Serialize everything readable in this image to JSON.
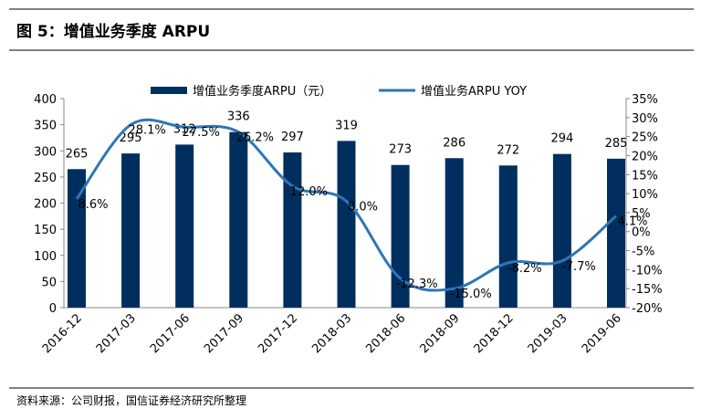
{
  "header": {
    "title": "图 5：增值业务季度 ARPU"
  },
  "chart_data": {
    "type": "bar_line",
    "categories": [
      "2016-12",
      "2017-03",
      "2017-06",
      "2017-09",
      "2017-12",
      "2018-03",
      "2018-06",
      "2018-09",
      "2018-12",
      "2019-03",
      "2019-06"
    ],
    "series": [
      {
        "name": "增值业务季度ARPU（元）",
        "type": "bar",
        "color": "#002f5f",
        "values": [
          265,
          295,
          312,
          336,
          297,
          319,
          273,
          286,
          272,
          294,
          285
        ]
      },
      {
        "name": "增值业务ARPU YOY",
        "type": "line",
        "axis": "y2",
        "color": "#2e75b6",
        "values": [
          8.6,
          28.1,
          27.5,
          26.2,
          12.0,
          8.0,
          -12.3,
          -15.0,
          -8.2,
          -7.7,
          4.1
        ],
        "value_labels": [
          "8.6%",
          "28.1%",
          "27.5%",
          "26.2%",
          "12.0%",
          "8.0%",
          "-12.3%",
          "-15.0%",
          "-8.2%",
          "-7.7%",
          "4.1%"
        ]
      }
    ],
    "ylim": [
      0,
      400
    ],
    "yticks": [
      0,
      50,
      100,
      150,
      200,
      250,
      300,
      350,
      400
    ],
    "y2lim": [
      -20,
      35
    ],
    "y2ticks": [
      {
        "value": -20,
        "label": "-20%"
      },
      {
        "value": -15,
        "label": "-15%"
      },
      {
        "value": -10,
        "label": "-10%"
      },
      {
        "value": -5,
        "label": "-5%"
      },
      {
        "value": 0,
        "label": "0%"
      },
      {
        "value": 5,
        "label": "5%"
      },
      {
        "value": 10,
        "label": "10%"
      },
      {
        "value": 15,
        "label": "15%"
      },
      {
        "value": 20,
        "label": "20%"
      },
      {
        "value": 25,
        "label": "25%"
      },
      {
        "value": 30,
        "label": "30%"
      },
      {
        "value": 35,
        "label": "35%"
      }
    ],
    "legend": "top"
  },
  "footer": {
    "source": "资料来源：公司财报，国信证券经济研究所整理"
  }
}
